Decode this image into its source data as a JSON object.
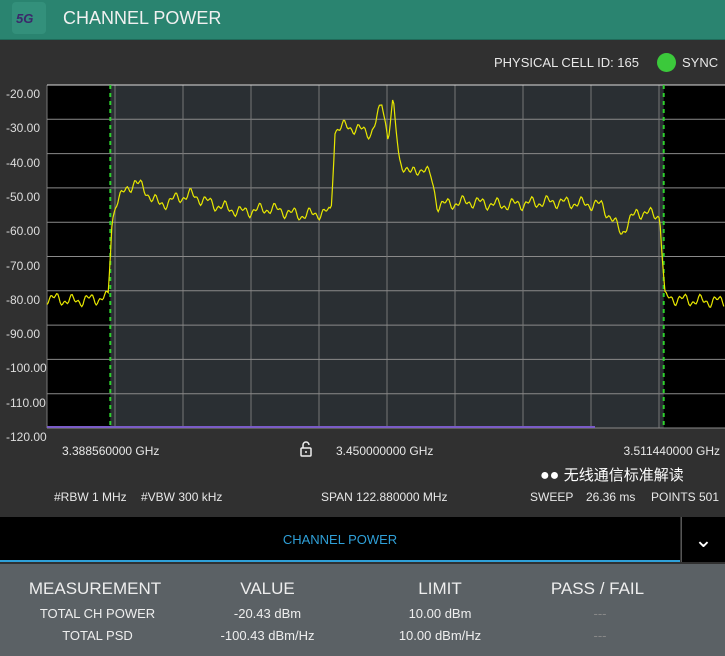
{
  "header": {
    "logo": "5G",
    "title": "CHANNEL POWER"
  },
  "status": {
    "cell_id": "PHYSICAL CELL ID: 165",
    "sync": "SYNC",
    "sync_color": "#3bc93b"
  },
  "chart_data": {
    "type": "line",
    "y_ticks": [
      "-20.00",
      "-30.00",
      "-40.00",
      "-50.00",
      "-60.00",
      "-70.00",
      "-80.00",
      "-90.00",
      "-100.00",
      "-110.00",
      "-120.00"
    ],
    "ylim": [
      -120,
      -20
    ],
    "xlim": [
      3.38856,
      3.51144
    ],
    "x_labels": {
      "start": "3.388560000 GHz",
      "center": "3.450000000 GHz",
      "stop": "3.511440000 GHz"
    },
    "channel_edges": [
      3.4,
      3.5
    ],
    "grid": true,
    "trace_color": "#e8e800",
    "series": [
      {
        "x": [
          3.38856,
          3.393,
          3.3996,
          3.4003,
          3.401,
          3.4045,
          3.407,
          3.409,
          3.412,
          3.4145,
          3.419,
          3.4236,
          3.429,
          3.4344,
          3.4399,
          3.4406,
          3.4426,
          3.445,
          3.4471,
          3.448,
          3.4491,
          3.4502,
          3.4511,
          3.4522,
          3.4533,
          3.4544,
          3.4565,
          3.458,
          3.4591,
          3.465,
          3.4707,
          3.48,
          3.4888,
          3.491,
          3.4924,
          3.4951,
          3.4993,
          3.5002,
          3.506,
          3.51144
        ],
        "y": [
          -82,
          -83,
          -82,
          -60,
          -54,
          -48,
          -52,
          -55,
          -53,
          -52,
          -55,
          -57,
          -56,
          -58,
          -57,
          -33,
          -32,
          -33,
          -34,
          -31,
          -25,
          -35,
          -25,
          -42,
          -44,
          -46,
          -44,
          -47,
          -55,
          -54,
          -55,
          -54,
          -55,
          -60,
          -63,
          -57,
          -58,
          -82,
          -83,
          -83
        ]
      }
    ],
    "limit_line": {
      "value": -120,
      "color": "#7a5cc8"
    }
  },
  "freq": {
    "lock_icon": "lock-open-icon"
  },
  "params": {
    "rbw": "#RBW 1 MHz",
    "vbw": "#VBW 300 kHz",
    "span": "SPAN 122.880000 MHz",
    "sweep_label": "SWEEP",
    "sweep_value": "26.36 ms",
    "points": "POINTS 501"
  },
  "panel": {
    "title": "CHANNEL POWER",
    "dropdown_icon": "chevron-down-icon"
  },
  "table": {
    "headers": [
      "MEASUREMENT",
      "VALUE",
      "LIMIT",
      "PASS / FAIL"
    ],
    "rows": [
      {
        "measurement": "TOTAL CH POWER",
        "value": "-20.43 dBm",
        "limit": "10.00 dBm",
        "pass": "---"
      },
      {
        "measurement": "TOTAL PSD",
        "value": "-100.43 dBm/Hz",
        "limit": "10.00 dBm/Hz",
        "pass": "---"
      }
    ]
  },
  "watermark": "无线通信标准解读"
}
